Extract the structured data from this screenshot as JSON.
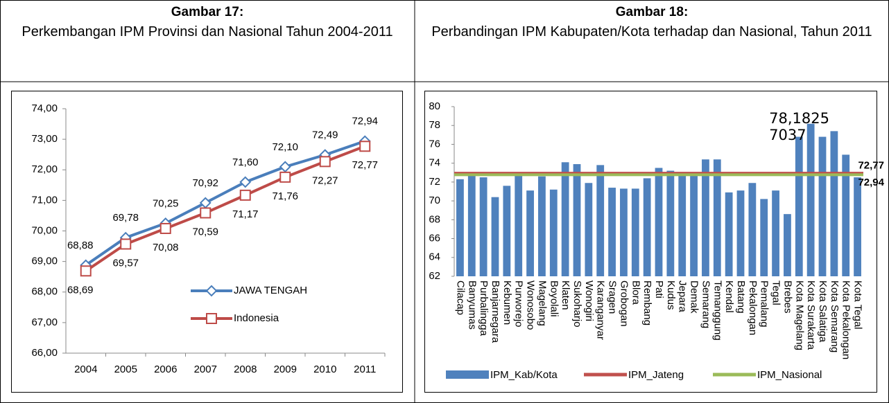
{
  "chart_data": [
    {
      "type": "line",
      "title": "Gambar 17:",
      "subtitle": "Perkembangan IPM Provinsi dan Nasional Tahun 2004-2011",
      "categories": [
        "2004",
        "2005",
        "2006",
        "2007",
        "2008",
        "2009",
        "2010",
        "2011"
      ],
      "series": [
        {
          "name": "JAWA TENGAH",
          "color": "#4a7ebb",
          "marker": "diamond",
          "values": [
            68.88,
            69.78,
            70.25,
            70.92,
            71.6,
            72.1,
            72.49,
            72.94
          ],
          "value_labels": [
            "68,88",
            "69,78",
            "70,25",
            "70,92",
            "71,60",
            "72,10",
            "72,49",
            "72,94"
          ]
        },
        {
          "name": "Indonesia",
          "color": "#be4b48",
          "marker": "square",
          "values": [
            68.69,
            69.57,
            70.08,
            70.59,
            71.17,
            71.76,
            72.27,
            72.77
          ],
          "value_labels": [
            "68,69",
            "69,57",
            "70,08",
            "70,59",
            "71,17",
            "71,76",
            "72,27",
            "72,77"
          ]
        }
      ],
      "ylim": [
        66,
        74
      ],
      "yticks": [
        {
          "value": 66,
          "label": "66,00"
        },
        {
          "value": 67,
          "label": "67,00"
        },
        {
          "value": 68,
          "label": "68,00"
        },
        {
          "value": 69,
          "label": "69,00"
        },
        {
          "value": 70,
          "label": "70,00"
        },
        {
          "value": 71,
          "label": "71,00"
        },
        {
          "value": 72,
          "label": "72,00"
        },
        {
          "value": 73,
          "label": "73,00"
        },
        {
          "value": 74,
          "label": "74,00"
        }
      ],
      "legend": "lower right"
    },
    {
      "type": "bar",
      "title": "Gambar 18:",
      "subtitle": "Perbandingan IPM Kabupaten/Kota terhadap dan Nasional, Tahun 2011",
      "categories": [
        "Cilacap",
        "Banyumas",
        "Purbalingga",
        "Banjarnegara",
        "Kebumen",
        "Purworejo",
        "Wonosobo",
        "Magelang",
        "Boyolali",
        "Klaten",
        "Sukoharjo",
        "Wonogiri",
        "Karanganyar",
        "Sragen",
        "Grobogan",
        "Blora",
        "Rembang",
        "Pati",
        "Kudus",
        "Jepara",
        "Demak",
        "Semarang",
        "Temanggung",
        "Kendal",
        "Batang",
        "Pekalongan",
        "Pemalang",
        "Tegal",
        "Brebes",
        "Kota Magelang",
        "Kota Surakarta",
        "Kota Salatiga",
        "Kota Semarang",
        "Kota Pekalongan",
        "Kota Tegal"
      ],
      "series": [
        {
          "name": "IPM_Kab/Kota",
          "color": "#4f81bd",
          "values": [
            72.3,
            72.9,
            72.5,
            70.4,
            71.6,
            72.7,
            71.1,
            72.6,
            71.2,
            74.1,
            73.9,
            71.9,
            73.8,
            71.4,
            71.3,
            71.3,
            72.4,
            73.5,
            73.2,
            72.8,
            72.7,
            74.4,
            74.4,
            70.9,
            71.1,
            71.9,
            70.2,
            71.1,
            68.6,
            76.8,
            78.18257037,
            76.8,
            77.4,
            74.9,
            72.5
          ],
          "value_labels": [
            null,
            null,
            null,
            null,
            null,
            null,
            null,
            null,
            null,
            null,
            null,
            null,
            null,
            null,
            null,
            null,
            null,
            null,
            null,
            null,
            null,
            null,
            null,
            null,
            null,
            null,
            null,
            null,
            null,
            null,
            "78,18257037",
            null,
            null,
            null,
            null
          ]
        }
      ],
      "lines": [
        {
          "name": "IPM_Jateng",
          "color": "#c0504d",
          "value": 72.94,
          "value_label": "72,94"
        },
        {
          "name": "IPM_Nasional",
          "color": "#9bbb59",
          "value": 72.77,
          "value_label": "72,77"
        }
      ],
      "ylim": [
        62,
        80
      ],
      "yticks": [
        62,
        64,
        66,
        68,
        70,
        72,
        74,
        76,
        78,
        80
      ],
      "legend": "bottom"
    }
  ]
}
